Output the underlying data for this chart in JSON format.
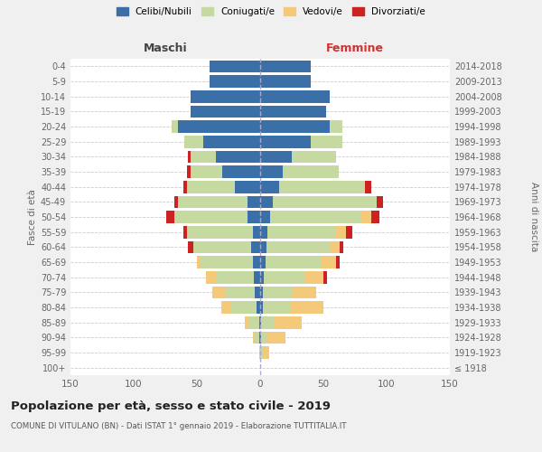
{
  "age_groups": [
    "100+",
    "95-99",
    "90-94",
    "85-89",
    "80-84",
    "75-79",
    "70-74",
    "65-69",
    "60-64",
    "55-59",
    "50-54",
    "45-49",
    "40-44",
    "35-39",
    "30-34",
    "25-29",
    "20-24",
    "15-19",
    "10-14",
    "5-9",
    "0-4"
  ],
  "birth_years": [
    "≤ 1918",
    "1919-1923",
    "1924-1928",
    "1929-1933",
    "1934-1938",
    "1939-1943",
    "1944-1948",
    "1949-1953",
    "1954-1958",
    "1959-1963",
    "1964-1968",
    "1969-1973",
    "1974-1978",
    "1979-1983",
    "1984-1988",
    "1989-1993",
    "1994-1998",
    "1999-2003",
    "2004-2008",
    "2009-2013",
    "2014-2018"
  ],
  "male": {
    "celibi": [
      0,
      0,
      1,
      1,
      3,
      4,
      5,
      6,
      7,
      6,
      10,
      10,
      20,
      30,
      35,
      45,
      65,
      55,
      55,
      40,
      40
    ],
    "coniugati": [
      0,
      1,
      4,
      8,
      20,
      24,
      30,
      42,
      46,
      52,
      58,
      55,
      38,
      25,
      20,
      15,
      5,
      0,
      0,
      0,
      0
    ],
    "vedovi": [
      0,
      0,
      1,
      3,
      8,
      10,
      8,
      2,
      0,
      0,
      0,
      0,
      0,
      0,
      0,
      0,
      0,
      0,
      0,
      0,
      0
    ],
    "divorziati": [
      0,
      0,
      0,
      0,
      0,
      0,
      0,
      0,
      4,
      3,
      6,
      3,
      3,
      3,
      2,
      0,
      0,
      0,
      0,
      0,
      0
    ]
  },
  "female": {
    "nubili": [
      0,
      0,
      1,
      1,
      2,
      2,
      3,
      4,
      5,
      6,
      8,
      10,
      15,
      18,
      25,
      40,
      55,
      52,
      55,
      40,
      40
    ],
    "coniugate": [
      0,
      2,
      5,
      10,
      22,
      24,
      32,
      44,
      50,
      54,
      72,
      82,
      68,
      44,
      35,
      25,
      10,
      0,
      0,
      0,
      0
    ],
    "vedove": [
      0,
      5,
      14,
      22,
      26,
      18,
      15,
      12,
      8,
      8,
      8,
      0,
      0,
      0,
      0,
      0,
      0,
      0,
      0,
      0,
      0
    ],
    "divorziate": [
      0,
      0,
      0,
      0,
      0,
      0,
      3,
      3,
      3,
      5,
      6,
      5,
      5,
      0,
      0,
      0,
      0,
      0,
      0,
      0,
      0
    ]
  },
  "colors": {
    "celibi": "#3b6fa8",
    "coniugati": "#c5d9a0",
    "vedovi": "#f5c97a",
    "divorziati": "#cc2222"
  },
  "title": "Popolazione per età, sesso e stato civile - 2019",
  "subtitle": "COMUNE DI VITULANO (BN) - Dati ISTAT 1° gennaio 2019 - Elaborazione TUTTITALIA.IT",
  "xlabel_left": "Maschi",
  "xlabel_right": "Femmine",
  "ylabel_left": "Fasce di età",
  "ylabel_right": "Anni di nascita",
  "legend_labels": [
    "Celibi/Nubili",
    "Coniugati/e",
    "Vedovi/e",
    "Divorziati/e"
  ],
  "xlim": 150,
  "background_color": "#f0f0f0",
  "plot_bg": "#ffffff"
}
